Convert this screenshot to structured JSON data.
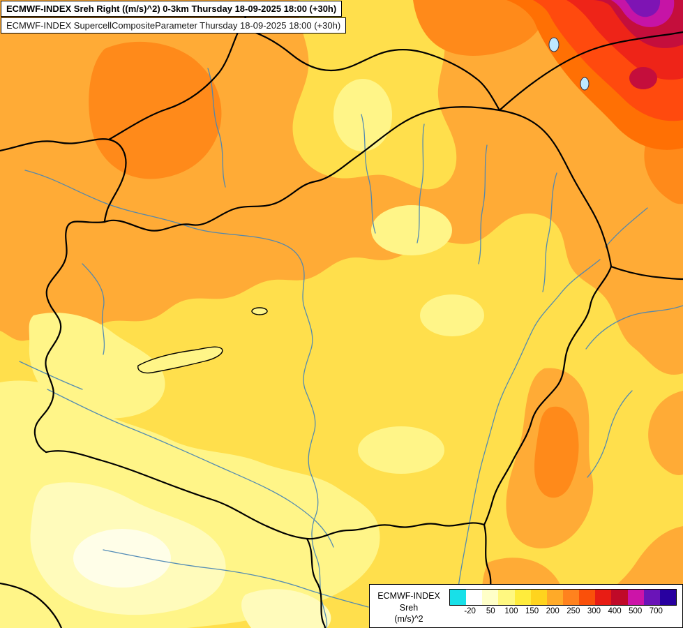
{
  "header": {
    "line1": "ECMWF-INDEX Sreh Right ((m/s)^2) 0-3km Thursday 18-09-2025 18:00 (+30h)",
    "line2": "ECMWF-INDEX SupercellCompositeParameter Thursday 18-09-2025 18:00 (+30h)"
  },
  "legend": {
    "title": "ECMWF-INDEX",
    "parameter": "Sreh",
    "unit": "(m/s)^2",
    "ticks": [
      "-20",
      "50",
      "100",
      "150",
      "200",
      "250",
      "300",
      "400",
      "500",
      "700"
    ],
    "colors": [
      "#18E0E8",
      "#FFFFFF",
      "#FFFFC8",
      "#FFF880",
      "#FFEC3C",
      "#FFD41E",
      "#FFAA28",
      "#FF821E",
      "#FA500A",
      "#E81C14",
      "#C00A28",
      "#CC14A8",
      "#6A14B8",
      "#2800A0"
    ]
  },
  "map_colors": {
    "base_yellow": "#FFDF4C",
    "orange": "#FFAB36",
    "dark_orange": "#FF8A1A",
    "deep_orange": "#FF7004",
    "red_orange": "#FF4A0E",
    "red": "#EE2418",
    "crimson": "#C40E3C",
    "magenta": "#C614A6",
    "purple": "#7E14B4",
    "pale_yellow": "#FFF588",
    "cream": "#FFFBBB",
    "near_white": "#FFFEE8",
    "river_blue": "#4A86B4",
    "border_black": "#000000",
    "lake_blue": "#BEE8FF"
  }
}
